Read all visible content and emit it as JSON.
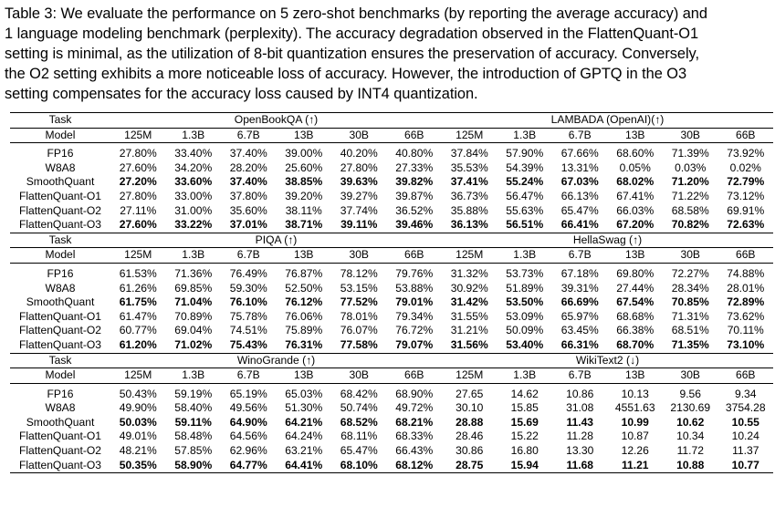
{
  "caption": {
    "lines": [
      "Table 3: We evaluate the performance on 5 zero-shot benchmarks (by reporting the average accuracy) and",
      "1 language modeling benchmark (perplexity). The accuracy degradation observed in the FlattenQuant-O1",
      "setting is minimal, as the utilization of 8-bit quantization ensures the preservation of accuracy. Conversely,",
      "the O2 setting exhibits a more noticeable loss of accuracy. However, the introduction of GPTQ in the O3",
      "setting compensates for the accuracy loss caused by INT4 quantization."
    ]
  },
  "table": {
    "task_label": "Task",
    "model_label": "Model",
    "sizes": [
      "125M",
      "1.3B",
      "6.7B",
      "13B",
      "30B",
      "66B"
    ],
    "methods": [
      "FP16",
      "W8A8",
      "SmoothQuant",
      "FlattenQuant-O1",
      "FlattenQuant-O2",
      "FlattenQuant-O3"
    ],
    "bold_methods": [
      "SmoothQuant",
      "FlattenQuant-O3"
    ],
    "sections": [
      {
        "tasks": [
          "OpenBookQA (↑)",
          "LAMBADA (OpenAI)(↑)"
        ],
        "rows": [
          [
            "27.80%",
            "33.40%",
            "37.40%",
            "39.00%",
            "40.20%",
            "40.80%",
            "37.84%",
            "57.90%",
            "67.66%",
            "68.60%",
            "71.39%",
            "73.92%"
          ],
          [
            "27.60%",
            "34.20%",
            "28.20%",
            "25.60%",
            "27.80%",
            "27.33%",
            "35.53%",
            "54.39%",
            "13.31%",
            "0.05%",
            "0.03%",
            "0.02%"
          ],
          [
            "27.20%",
            "33.60%",
            "37.40%",
            "38.85%",
            "39.63%",
            "39.82%",
            "37.41%",
            "55.24%",
            "67.03%",
            "68.02%",
            "71.20%",
            "72.79%"
          ],
          [
            "27.80%",
            "33.00%",
            "37.80%",
            "39.20%",
            "39.27%",
            "39.87%",
            "36.73%",
            "56.47%",
            "66.13%",
            "67.41%",
            "71.22%",
            "73.12%"
          ],
          [
            "27.11%",
            "31.00%",
            "35.60%",
            "38.11%",
            "37.74%",
            "36.52%",
            "35.88%",
            "55.63%",
            "65.47%",
            "66.03%",
            "68.58%",
            "69.91%"
          ],
          [
            "27.60%",
            "33.22%",
            "37.01%",
            "38.71%",
            "39.11%",
            "39.46%",
            "36.13%",
            "56.51%",
            "66.41%",
            "67.20%",
            "70.82%",
            "72.63%"
          ]
        ]
      },
      {
        "tasks": [
          "PIQA (↑)",
          "HellaSwag (↑)"
        ],
        "rows": [
          [
            "61.53%",
            "71.36%",
            "76.49%",
            "76.87%",
            "78.12%",
            "79.76%",
            "31.32%",
            "53.73%",
            "67.18%",
            "69.80%",
            "72.27%",
            "74.88%"
          ],
          [
            "61.26%",
            "69.85%",
            "59.30%",
            "52.50%",
            "53.15%",
            "53.88%",
            "30.92%",
            "51.89%",
            "39.31%",
            "27.44%",
            "28.34%",
            "28.01%"
          ],
          [
            "61.75%",
            "71.04%",
            "76.10%",
            "76.12%",
            "77.52%",
            "79.01%",
            "31.42%",
            "53.50%",
            "66.69%",
            "67.54%",
            "70.85%",
            "72.89%"
          ],
          [
            "61.47%",
            "70.89%",
            "75.78%",
            "76.06%",
            "78.01%",
            "79.34%",
            "31.55%",
            "53.09%",
            "65.97%",
            "68.68%",
            "71.31%",
            "73.62%"
          ],
          [
            "60.77%",
            "69.04%",
            "74.51%",
            "75.89%",
            "76.07%",
            "76.72%",
            "31.21%",
            "50.09%",
            "63.45%",
            "66.38%",
            "68.51%",
            "70.11%"
          ],
          [
            "61.20%",
            "71.02%",
            "75.43%",
            "76.31%",
            "77.58%",
            "79.07%",
            "31.56%",
            "53.40%",
            "66.31%",
            "68.70%",
            "71.35%",
            "73.10%"
          ]
        ]
      },
      {
        "tasks": [
          "WinoGrande (↑)",
          "WikiText2 (↓)"
        ],
        "rows": [
          [
            "50.43%",
            "59.19%",
            "65.19%",
            "65.03%",
            "68.42%",
            "68.90%",
            "27.65",
            "14.62",
            "10.86",
            "10.13",
            "9.56",
            "9.34"
          ],
          [
            "49.90%",
            "58.40%",
            "49.56%",
            "51.30%",
            "50.74%",
            "49.72%",
            "30.10",
            "15.85",
            "31.08",
            "4551.63",
            "2130.69",
            "3754.28"
          ],
          [
            "50.03%",
            "59.11%",
            "64.90%",
            "64.21%",
            "68.52%",
            "68.21%",
            "28.88",
            "15.69",
            "11.43",
            "10.99",
            "10.62",
            "10.55"
          ],
          [
            "49.01%",
            "58.48%",
            "64.56%",
            "64.24%",
            "68.11%",
            "68.33%",
            "28.46",
            "15.22",
            "11.28",
            "10.87",
            "10.34",
            "10.24"
          ],
          [
            "48.21%",
            "57.85%",
            "62.96%",
            "63.21%",
            "65.47%",
            "66.43%",
            "30.86",
            "16.80",
            "13.30",
            "12.26",
            "11.72",
            "11.37"
          ],
          [
            "50.35%",
            "58.90%",
            "64.77%",
            "64.41%",
            "68.10%",
            "68.12%",
            "28.75",
            "15.94",
            "11.68",
            "11.21",
            "10.88",
            "10.77"
          ]
        ]
      }
    ]
  }
}
